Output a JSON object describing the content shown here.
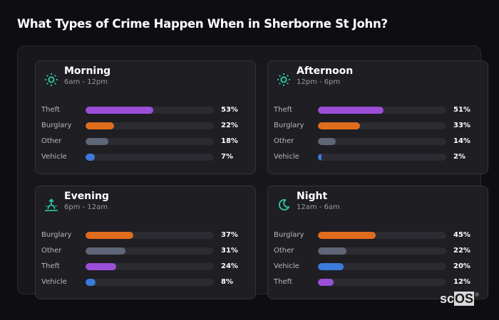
{
  "header": {
    "title": "What Types of Crime Happen When in Sherborne St John?"
  },
  "colors": {
    "theft": "#9b4fd9",
    "burglary": "#e06c1e",
    "other": "#5e6678",
    "vehicle": "#3a7bdb",
    "accent_icon": "#2ec4a0",
    "track": "#2c2b31"
  },
  "cards": [
    {
      "name": "Morning",
      "range": "6am - 12pm",
      "icon": "sun-icon",
      "rows": [
        {
          "label": "Theft",
          "value": 53,
          "pct": "53%",
          "color": "#9b4fd9"
        },
        {
          "label": "Burglary",
          "value": 22,
          "pct": "22%",
          "color": "#e06c1e"
        },
        {
          "label": "Other",
          "value": 18,
          "pct": "18%",
          "color": "#5e6678"
        },
        {
          "label": "Vehicle",
          "value": 7,
          "pct": "7%",
          "color": "#3a7bdb"
        }
      ]
    },
    {
      "name": "Afternoon",
      "range": "12pm - 6pm",
      "icon": "sun-icon",
      "rows": [
        {
          "label": "Theft",
          "value": 51,
          "pct": "51%",
          "color": "#9b4fd9"
        },
        {
          "label": "Burglary",
          "value": 33,
          "pct": "33%",
          "color": "#e06c1e"
        },
        {
          "label": "Other",
          "value": 14,
          "pct": "14%",
          "color": "#5e6678"
        },
        {
          "label": "Vehicle",
          "value": 2,
          "pct": "2%",
          "color": "#3a7bdb"
        }
      ]
    },
    {
      "name": "Evening",
      "range": "6pm - 12am",
      "icon": "sunset-icon",
      "rows": [
        {
          "label": "Burglary",
          "value": 37,
          "pct": "37%",
          "color": "#e06c1e"
        },
        {
          "label": "Other",
          "value": 31,
          "pct": "31%",
          "color": "#5e6678"
        },
        {
          "label": "Theft",
          "value": 24,
          "pct": "24%",
          "color": "#9b4fd9"
        },
        {
          "label": "Vehicle",
          "value": 8,
          "pct": "8%",
          "color": "#3a7bdb"
        }
      ]
    },
    {
      "name": "Night",
      "range": "12am - 6am",
      "icon": "moon-icon",
      "rows": [
        {
          "label": "Burglary",
          "value": 45,
          "pct": "45%",
          "color": "#e06c1e"
        },
        {
          "label": "Other",
          "value": 22,
          "pct": "22%",
          "color": "#5e6678"
        },
        {
          "label": "Vehicle",
          "value": 20,
          "pct": "20%",
          "color": "#3a7bdb"
        },
        {
          "label": "Theft",
          "value": 12,
          "pct": "12%",
          "color": "#9b4fd9"
        }
      ]
    }
  ],
  "logo": {
    "sc": "sc",
    "os": "OS",
    "reg": "®"
  }
}
